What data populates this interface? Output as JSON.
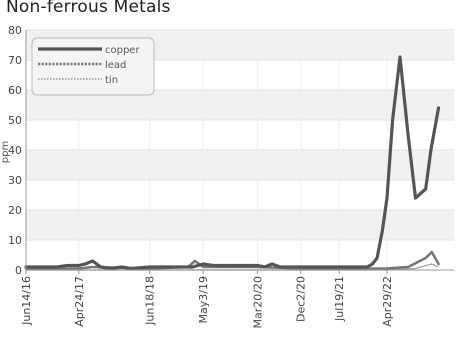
{
  "chart_data": {
    "type": "line",
    "title": "Non-ferrous Metals",
    "ylabel": "ppm",
    "xlabel": "",
    "ylim": [
      0,
      80
    ],
    "yticks": [
      0,
      10,
      20,
      30,
      40,
      50,
      60,
      70,
      80
    ],
    "xlim": [
      "2016-06-14",
      "2023-06-01"
    ],
    "xtick_labels": [
      {
        "label": "Jun14/16",
        "date": "2016-06-14"
      },
      {
        "label": "Apr24/17",
        "date": "2017-04-24"
      },
      {
        "label": "Jun18/18",
        "date": "2018-06-18"
      },
      {
        "label": "May3/19",
        "date": "2019-05-03"
      },
      {
        "label": "Mar20/20",
        "date": "2020-03-20"
      },
      {
        "label": "Dec2/20",
        "date": "2020-12-02"
      },
      {
        "label": "Jul19/21",
        "date": "2021-07-19"
      },
      {
        "label": "Apr29/22",
        "date": "2022-04-29"
      }
    ],
    "grid": true,
    "legend_position": "top-left",
    "series": [
      {
        "name": "copper",
        "color": "#555555",
        "style": "solid",
        "points": [
          [
            "2016-06-14",
            1
          ],
          [
            "2016-08-15",
            1
          ],
          [
            "2016-10-15",
            1
          ],
          [
            "2016-12-15",
            1
          ],
          [
            "2017-02-15",
            1.5
          ],
          [
            "2017-04-24",
            1.5
          ],
          [
            "2017-06-01",
            2
          ],
          [
            "2017-07-15",
            3
          ],
          [
            "2017-09-01",
            1
          ],
          [
            "2017-11-01",
            0.5
          ],
          [
            "2018-01-01",
            1
          ],
          [
            "2018-03-01",
            0.5
          ],
          [
            "2018-06-18",
            1
          ],
          [
            "2018-09-01",
            1
          ],
          [
            "2018-12-01",
            1
          ],
          [
            "2019-03-01",
            1
          ],
          [
            "2019-05-03",
            2
          ],
          [
            "2019-07-01",
            1.5
          ],
          [
            "2019-10-01",
            1.5
          ],
          [
            "2020-01-01",
            1.5
          ],
          [
            "2020-03-20",
            1.5
          ],
          [
            "2020-05-01",
            1
          ],
          [
            "2020-06-15",
            2
          ],
          [
            "2020-08-01",
            1
          ],
          [
            "2020-12-02",
            1
          ],
          [
            "2021-03-01",
            1
          ],
          [
            "2021-07-19",
            1
          ],
          [
            "2021-10-01",
            1
          ],
          [
            "2021-11-20",
            1
          ],
          [
            "2022-01-01",
            1
          ],
          [
            "2022-02-01",
            2
          ],
          [
            "2022-03-01",
            4
          ],
          [
            "2022-04-01",
            13
          ],
          [
            "2022-04-29",
            24
          ],
          [
            "2022-06-01",
            50
          ],
          [
            "2022-07-15",
            71
          ],
          [
            "2022-09-01",
            45
          ],
          [
            "2022-10-15",
            24
          ],
          [
            "2022-12-15",
            27
          ],
          [
            "2023-01-15",
            40
          ],
          [
            "2023-03-01",
            54
          ]
        ]
      },
      {
        "name": "lead",
        "color": "#777777",
        "style": "dashed",
        "points": [
          [
            "2016-06-14",
            0.5
          ],
          [
            "2017-04-24",
            0.5
          ],
          [
            "2017-07-15",
            1
          ],
          [
            "2018-06-18",
            0.5
          ],
          [
            "2019-02-01",
            1
          ],
          [
            "2019-03-15",
            3
          ],
          [
            "2019-05-03",
            1
          ],
          [
            "2020-03-20",
            1
          ],
          [
            "2020-12-02",
            0.5
          ],
          [
            "2021-07-19",
            0.5
          ],
          [
            "2022-04-29",
            0.5
          ],
          [
            "2022-09-01",
            1
          ],
          [
            "2022-12-15",
            4
          ],
          [
            "2023-01-20",
            6
          ],
          [
            "2023-03-01",
            2
          ]
        ]
      },
      {
        "name": "tin",
        "color": "#999999",
        "style": "dotted",
        "points": [
          [
            "2016-06-14",
            0
          ],
          [
            "2017-04-24",
            0
          ],
          [
            "2018-06-18",
            0
          ],
          [
            "2019-05-03",
            0
          ],
          [
            "2020-03-20",
            0
          ],
          [
            "2020-12-02",
            0
          ],
          [
            "2021-07-19",
            0
          ],
          [
            "2022-04-29",
            0
          ],
          [
            "2022-10-15",
            0.5
          ],
          [
            "2023-01-20",
            2
          ],
          [
            "2023-03-01",
            1
          ]
        ]
      }
    ]
  }
}
